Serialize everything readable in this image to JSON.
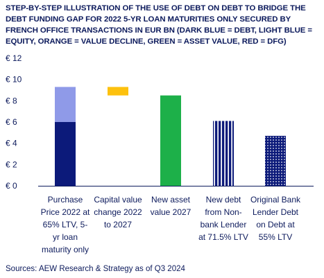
{
  "chart_data": {
    "type": "bar",
    "title": "STEP-BY-STEP ILLUSTRATION OF THE USE OF DEBT ON DEBT TO BRIDGE THE DEBT FUNDING GAP FOR 2022 5-YR LOAN MATURITIES ONLY SECURED BY FRENCH OFFICE TRANSACTIONS IN EUR BN (DARK BLUE = DEBT, LIGHT BLUE = EQUITY, ORANGE = VALUE DECLINE, GREEN = ASSET VALUE, RED = DFG)",
    "ylim": [
      0,
      12
    ],
    "yticks": [
      "€ 0",
      "€ 2",
      "€ 4",
      "€ 6",
      "€ 8",
      "€ 10",
      "€ 12"
    ],
    "ytick_values": [
      0,
      2,
      4,
      6,
      8,
      10,
      12
    ],
    "categories": [
      [
        "Purchase",
        "Price 2022 at",
        "65% LTV, 5-",
        "yr loan",
        "maturity only"
      ],
      [
        "Capital value",
        "change 2022",
        "to 2027"
      ],
      [
        "New asset",
        "value 2027"
      ],
      [
        "New debt",
        "from Non-",
        "bank Lender",
        "at 71.5% LTV"
      ],
      [
        "Original Bank",
        "Lender Debt",
        "on Debt at",
        "55% LTV"
      ]
    ],
    "bars": [
      {
        "category": 0,
        "segments": [
          {
            "from": 0,
            "to": 6.0,
            "color": "#0c1a7a",
            "pattern": "solid",
            "meaning": "debt"
          },
          {
            "from": 6.0,
            "to": 9.3,
            "color": "#8f9ae8",
            "pattern": "solid",
            "meaning": "equity"
          }
        ]
      },
      {
        "category": 1,
        "segments": [
          {
            "from": 8.5,
            "to": 9.3,
            "color": "#fdc10e",
            "pattern": "solid",
            "meaning": "value decline"
          }
        ]
      },
      {
        "category": 2,
        "segments": [
          {
            "from": 0,
            "to": 8.5,
            "color": "#1db049",
            "pattern": "solid",
            "meaning": "asset value"
          }
        ]
      },
      {
        "category": 3,
        "segments": [
          {
            "from": 0,
            "to": 6.1,
            "color": "#0c1a7a",
            "pattern": "vertical-stripes",
            "meaning": "debt"
          }
        ]
      },
      {
        "category": 4,
        "segments": [
          {
            "from": 0,
            "to": 4.7,
            "color": "#0c1a7a",
            "pattern": "dots",
            "meaning": "debt"
          }
        ]
      }
    ],
    "grid": false,
    "legend": "none"
  },
  "source": "Sources: AEW Research & Strategy as of Q3 2024"
}
